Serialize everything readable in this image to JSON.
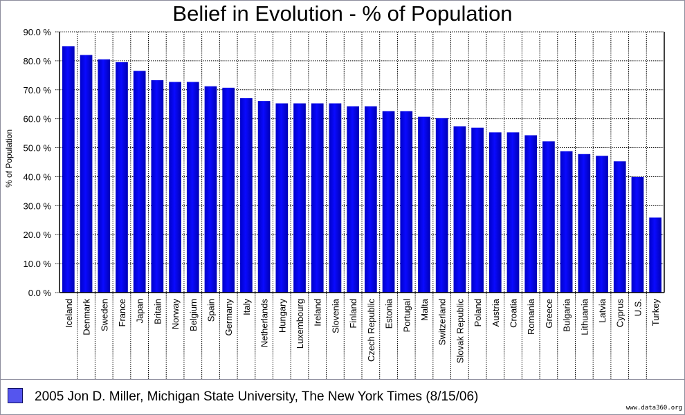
{
  "chart_data": {
    "type": "bar",
    "title": "Belief in Evolution - % of Population",
    "xlabel": "",
    "ylabel": "% of Population",
    "ylim": [
      0,
      90
    ],
    "yticks": [
      0,
      10,
      20,
      30,
      40,
      50,
      60,
      70,
      80,
      90
    ],
    "ytick_labels": [
      "0.0 %",
      "10.0 %",
      "20.0 %",
      "30.0 %",
      "40.0 %",
      "50.0 %",
      "60.0 %",
      "70.0 %",
      "80.0 %",
      "90.0 %"
    ],
    "grid": true,
    "legend_position": "bottom",
    "categories": [
      "Iceland",
      "Denmark",
      "Sweden",
      "France",
      "Japan",
      "Britain",
      "Norway",
      "Belgium",
      "Spain",
      "Germany",
      "Italy",
      "Netherlands",
      "Hungary",
      "Luxembourg",
      "Ireland",
      "Slovenia",
      "Finland",
      "Czech Republic",
      "Estonia",
      "Portugal",
      "Malta",
      "Switzerland",
      "Slovak Republic",
      "Poland",
      "Austria",
      "Croatia",
      "Romania",
      "Greece",
      "Bulgaria",
      "Lithuania",
      "Latvia",
      "Cyprus",
      "U.S.",
      "Turkey"
    ],
    "series": [
      {
        "name": "2005 Jon D. Miller, Michigan State University, The New York Times (8/15/06)",
        "color": "#0000ee",
        "values": [
          85,
          82,
          80.5,
          79.5,
          76.5,
          73.3,
          72.7,
          72.7,
          71.2,
          70.7,
          67.1,
          66.1,
          65.3,
          65.3,
          65.3,
          65.3,
          64.3,
          64.3,
          62.6,
          62.6,
          60.7,
          60.2,
          57.4,
          56.9,
          55.3,
          55.3,
          54.3,
          52.2,
          48.8,
          47.8,
          47.2,
          45.3,
          39.9,
          25.9
        ]
      }
    ]
  },
  "legend": {
    "swatch_color": "#5555ee",
    "label": "2005 Jon D. Miller, Michigan State University, The New York Times (8/15/06)"
  },
  "watermark": "www.data360.org"
}
